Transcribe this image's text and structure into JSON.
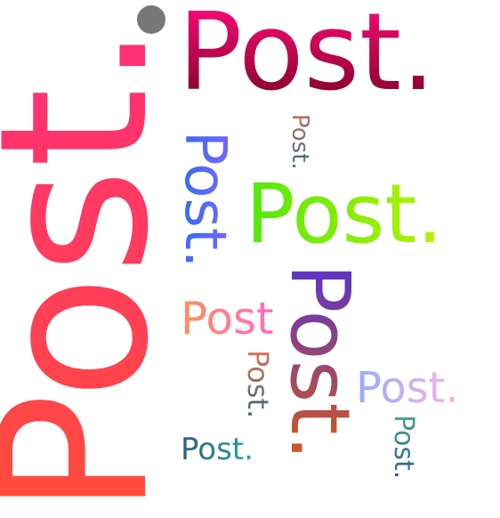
{
  "word_cloud": {
    "words": [
      {
        "text": "Post."
      },
      {
        "text": "Post."
      },
      {
        "text": "Post."
      },
      {
        "text": "Post."
      },
      {
        "text": "Post."
      },
      {
        "text": "Post"
      },
      {
        "text": "Post."
      },
      {
        "text": "Post."
      },
      {
        "text": "Post."
      },
      {
        "text": "Post."
      },
      {
        "text": "Post."
      }
    ],
    "accent_colors": [
      "#ff4d3b",
      "#ff2d7a",
      "#7d0025",
      "#52e810",
      "#7a63ff",
      "#9aa9ff",
      "#22a7a4"
    ]
  }
}
